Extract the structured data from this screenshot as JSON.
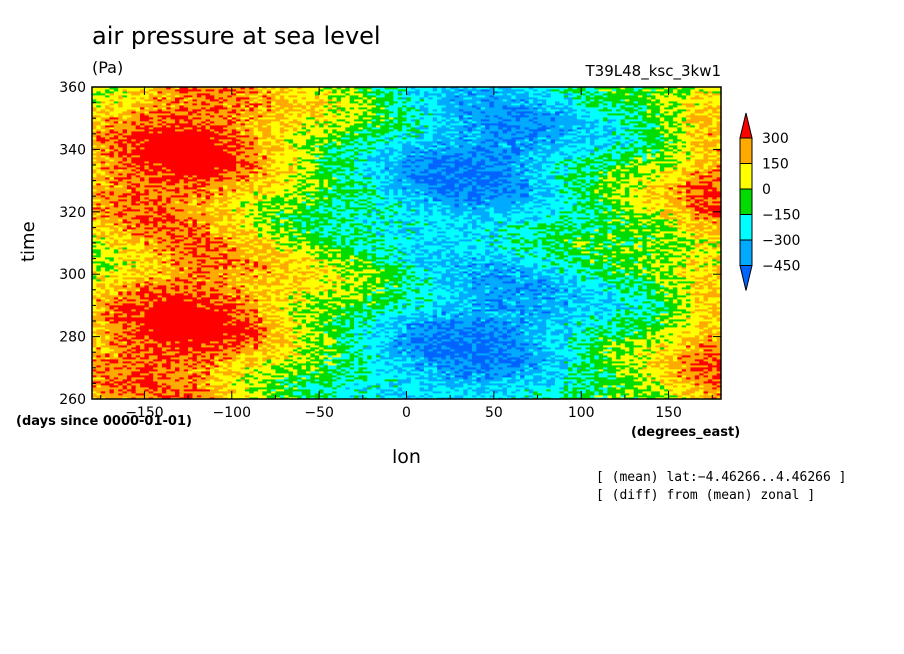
{
  "chart_data": {
    "type": "heatmap",
    "title": "air pressure at sea level",
    "units": "(Pa)",
    "experiment": "T39L48_ksc_3kw1",
    "xlabel": "lon",
    "ylabel": "time",
    "x_units": "(degrees_east)",
    "y_units": "(days since 0000-01-01)",
    "xlim": [
      -180,
      180
    ],
    "ylim": [
      260,
      360
    ],
    "xticks": [
      -150,
      -100,
      -50,
      0,
      50,
      100,
      150
    ],
    "yticks": [
      260,
      280,
      300,
      320,
      340,
      360
    ],
    "xtick_labels": [
      "−150",
      "−100",
      "−50",
      "0",
      "50",
      "100",
      "150"
    ],
    "ytick_labels": [
      "260",
      "280",
      "300",
      "320",
      "340",
      "360"
    ],
    "colorbar": {
      "levels": [
        -450,
        -300,
        -150,
        0,
        150,
        300
      ],
      "labels": [
        "300",
        "150",
        "0",
        "−150",
        "−300",
        "−450"
      ],
      "colors": [
        "#0064ff",
        "#00aaff",
        "#00ffff",
        "#00dc00",
        "#ffff00",
        "#ffaa00",
        "#ff0000"
      ],
      "extend": "both"
    },
    "notes": [
      "[ (mean) lat:−4.46266..4.46266 ]",
      "[ (diff) from (mean) zonal ]"
    ]
  }
}
